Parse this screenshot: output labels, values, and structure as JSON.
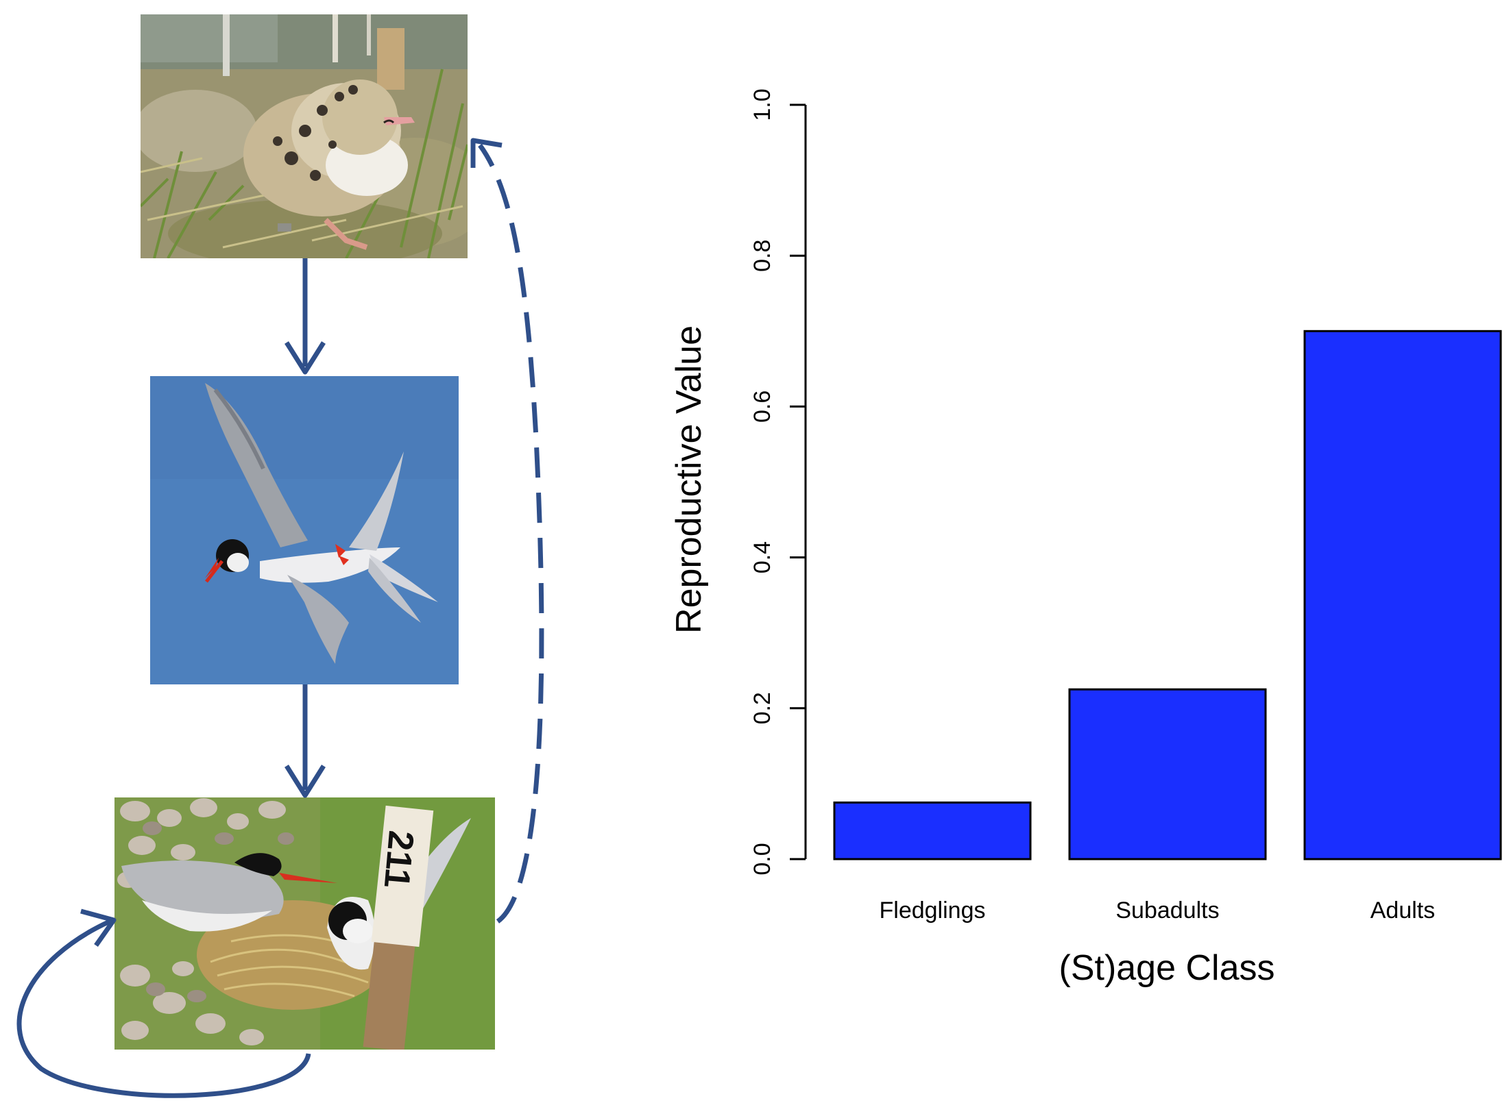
{
  "colors": {
    "bar_fill": "#1a2fff",
    "bar_stroke": "#000000",
    "arrow": "#2f4f8a",
    "sky": "#4d80bd"
  },
  "diagram": {
    "stages": [
      {
        "name": "chick-photo",
        "depicts": "tern chick in grass"
      },
      {
        "name": "flying-photo",
        "depicts": "tern flying against blue sky"
      },
      {
        "name": "adults-photo",
        "depicts": "adult terns at nest with numbered stake"
      }
    ],
    "arrows": [
      {
        "from": "chick",
        "to": "flying",
        "style": "solid"
      },
      {
        "from": "flying",
        "to": "adults",
        "style": "solid"
      },
      {
        "from": "adults",
        "to": "chick",
        "style": "dashed"
      },
      {
        "from": "adults",
        "to": "adults",
        "style": "solid-loop"
      }
    ],
    "stake_label": "211"
  },
  "chart_data": {
    "type": "bar",
    "categories": [
      "Fledglings",
      "Subadults",
      "Adults"
    ],
    "values": [
      0.075,
      0.225,
      0.7
    ],
    "title": "",
    "xlabel": "(St)age Class",
    "ylabel": "Reproductive Value",
    "ylim": [
      0.0,
      1.0
    ],
    "yticks": [
      "0.0",
      "0.2",
      "0.4",
      "0.6",
      "0.8",
      "1.0"
    ],
    "grid": false
  }
}
